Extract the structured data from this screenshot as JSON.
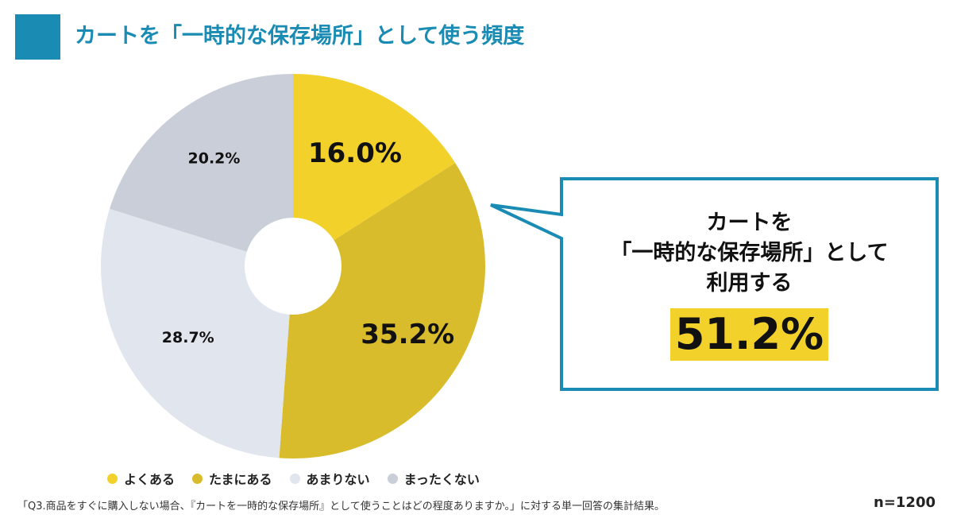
{
  "title": "カートを「一時的な保存場所」として使う頻度",
  "callout": {
    "line1": "カートを",
    "line2": "「一時的な保存場所」として",
    "line3": "利用する",
    "value": "51.2%"
  },
  "footnote": "「Q3.商品をすぐに購入しない場合、『カートを一時的な保存場所』として使うことはどの程度ありますか。」に対する単一回答の集計結果。",
  "sample_size": "n=1200",
  "chart_data": {
    "type": "pie",
    "donut": true,
    "legend_position": "bottom",
    "categories": [
      "よくある",
      "たまにある",
      "あまりない",
      "まったくない"
    ],
    "values": [
      16.0,
      35.2,
      28.7,
      20.2
    ],
    "labels": [
      "16.0%",
      "35.2%",
      "28.7%",
      "20.2%"
    ],
    "colors": [
      "#f2d12a",
      "#d9bc2b",
      "#e1e5ed",
      "#c9ced8"
    ]
  }
}
